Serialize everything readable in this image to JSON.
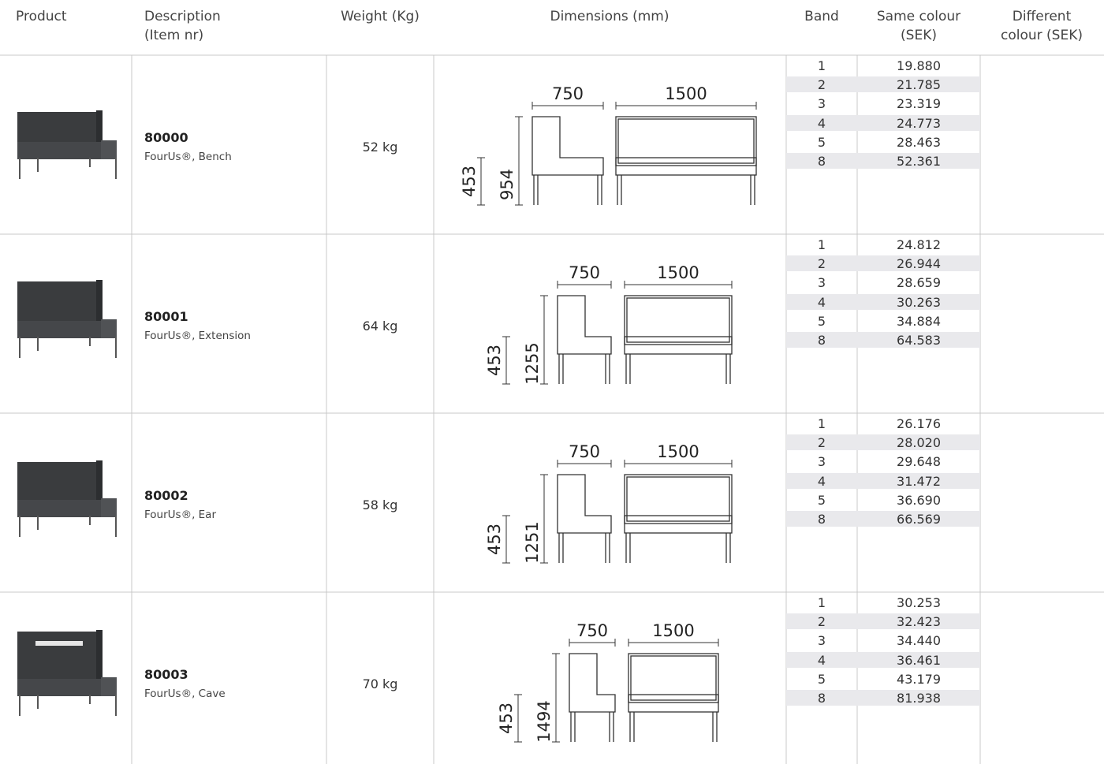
{
  "header": {
    "columns": [
      [
        "Product"
      ],
      [
        "Description",
        "(Item nr)"
      ],
      [
        "Weight (Kg)"
      ],
      [
        "Dimensions (mm)"
      ],
      [
        "Band"
      ],
      [
        "Same colour",
        "(SEK)"
      ],
      [
        "Different",
        "colour (SEK)"
      ]
    ]
  },
  "rows": [
    {
      "item_nr": "80000",
      "name": "FourUs®, Bench",
      "weight": "52 kg",
      "dimensions": {
        "depth": "750",
        "width": "1500",
        "height": "954",
        "seat_height": "453"
      },
      "prices": [
        {
          "band": "1",
          "same_colour": "19.880"
        },
        {
          "band": "2",
          "same_colour": "21.785"
        },
        {
          "band": "3",
          "same_colour": "23.319"
        },
        {
          "band": "4",
          "same_colour": "24.773"
        },
        {
          "band": "5",
          "same_colour": "28.463"
        },
        {
          "band": "8",
          "same_colour": "52.361"
        }
      ]
    },
    {
      "item_nr": "80001",
      "name": "FourUs®, Extension",
      "weight": "64 kg",
      "dimensions": {
        "depth": "750",
        "width": "1500",
        "height": "1255",
        "seat_height": "453"
      },
      "prices": [
        {
          "band": "1",
          "same_colour": "24.812"
        },
        {
          "band": "2",
          "same_colour": "26.944"
        },
        {
          "band": "3",
          "same_colour": "28.659"
        },
        {
          "band": "4",
          "same_colour": "30.263"
        },
        {
          "band": "5",
          "same_colour": "34.884"
        },
        {
          "band": "8",
          "same_colour": "64.583"
        }
      ]
    },
    {
      "item_nr": "80002",
      "name": "FourUs®, Ear",
      "weight": "58 kg",
      "dimensions": {
        "depth": "750",
        "width": "1500",
        "height": "1251",
        "seat_height": "453"
      },
      "prices": [
        {
          "band": "1",
          "same_colour": "26.176"
        },
        {
          "band": "2",
          "same_colour": "28.020"
        },
        {
          "band": "3",
          "same_colour": "29.648"
        },
        {
          "band": "4",
          "same_colour": "31.472"
        },
        {
          "band": "5",
          "same_colour": "36.690"
        },
        {
          "band": "8",
          "same_colour": "66.569"
        }
      ]
    },
    {
      "item_nr": "80003",
      "name": "FourUs®, Cave",
      "weight": "70 kg",
      "dimensions": {
        "depth": "750",
        "width": "1500",
        "height": "1494",
        "seat_height": "453"
      },
      "prices": [
        {
          "band": "1",
          "same_colour": "30.253"
        },
        {
          "band": "2",
          "same_colour": "32.423"
        },
        {
          "band": "3",
          "same_colour": "34.440"
        },
        {
          "band": "4",
          "same_colour": "36.461"
        },
        {
          "band": "5",
          "same_colour": "43.179"
        },
        {
          "band": "8",
          "same_colour": "81.938"
        }
      ]
    }
  ]
}
